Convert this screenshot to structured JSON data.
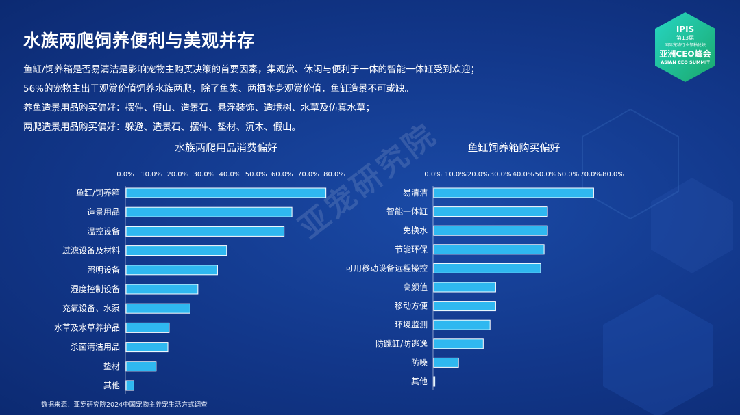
{
  "title": "水族两爬饲养便利与美观并存",
  "intro": [
    "鱼缸/饲养箱是否易清洁是影响宠物主购买决策的首要因素，集观赏、休闲与便利于一体的智能一体缸受到欢迎；",
    "56%的宠物主出于观赏价值饲养水族两爬，除了鱼类、两栖本身观赏价值，鱼缸造景不可或缺。",
    "养鱼造景用品购买偏好：摆件、假山、造景石、悬浮装饰、造境树、水草及仿真水草；",
    "两爬造景用品购买偏好：躲避、造景石、摆件、垫材、沉木、假山。"
  ],
  "logo": {
    "brand": "IPIS",
    "edition": "第13届",
    "sub": "国际宠物行业领袖论坛",
    "main": "亚洲CEO峰会",
    "en": "ASIAN CEO SUMMIT"
  },
  "watermark": "亚宠研究院",
  "source": "数据来源：亚宠研究院2024中国宠物主养宠生活方式调查",
  "colors": {
    "bar": "#2fb8f0",
    "bar_edge": "#ffffff",
    "background": "#12378a"
  },
  "chart_data": [
    {
      "type": "bar",
      "orientation": "horizontal",
      "title": "水族两爬用品消费偏好",
      "xlim": [
        0,
        80
      ],
      "ticks": [
        "0.0%",
        "10.0%",
        "20.0%",
        "30.0%",
        "40.0%",
        "50.0%",
        "60.0%",
        "70.0%",
        "80.0%"
      ],
      "categories": [
        "鱼缸/饲养箱",
        "造景用品",
        "温控设备",
        "过滤设备及材料",
        "照明设备",
        "湿度控制设备",
        "充氧设备、水泵",
        "水草及水草养护品",
        "杀菌清洁用品",
        "垫材",
        "其他"
      ],
      "values": [
        76.5,
        63.5,
        60.5,
        38.5,
        35.0,
        27.5,
        24.5,
        16.5,
        16.0,
        11.5,
        3.0
      ]
    },
    {
      "type": "bar",
      "orientation": "horizontal",
      "title": "鱼缸饲养箱购买偏好",
      "xlim": [
        0,
        80
      ],
      "ticks": [
        "0.0%",
        "10.0%",
        "20.0%",
        "30.0%",
        "40.0%",
        "50.0%",
        "60.0%",
        "70.0%",
        "80.0%"
      ],
      "categories": [
        "易清洁",
        "智能一体缸",
        "免换水",
        "节能环保",
        "可用移动设备远程操控",
        "高颜值",
        "移动方便",
        "环境监测",
        "防跳缸/防逃逸",
        "防噪",
        "其他"
      ],
      "values": [
        71.0,
        50.5,
        50.5,
        49.0,
        47.5,
        27.5,
        27.5,
        25.0,
        22.0,
        11.0,
        0.5
      ]
    }
  ]
}
